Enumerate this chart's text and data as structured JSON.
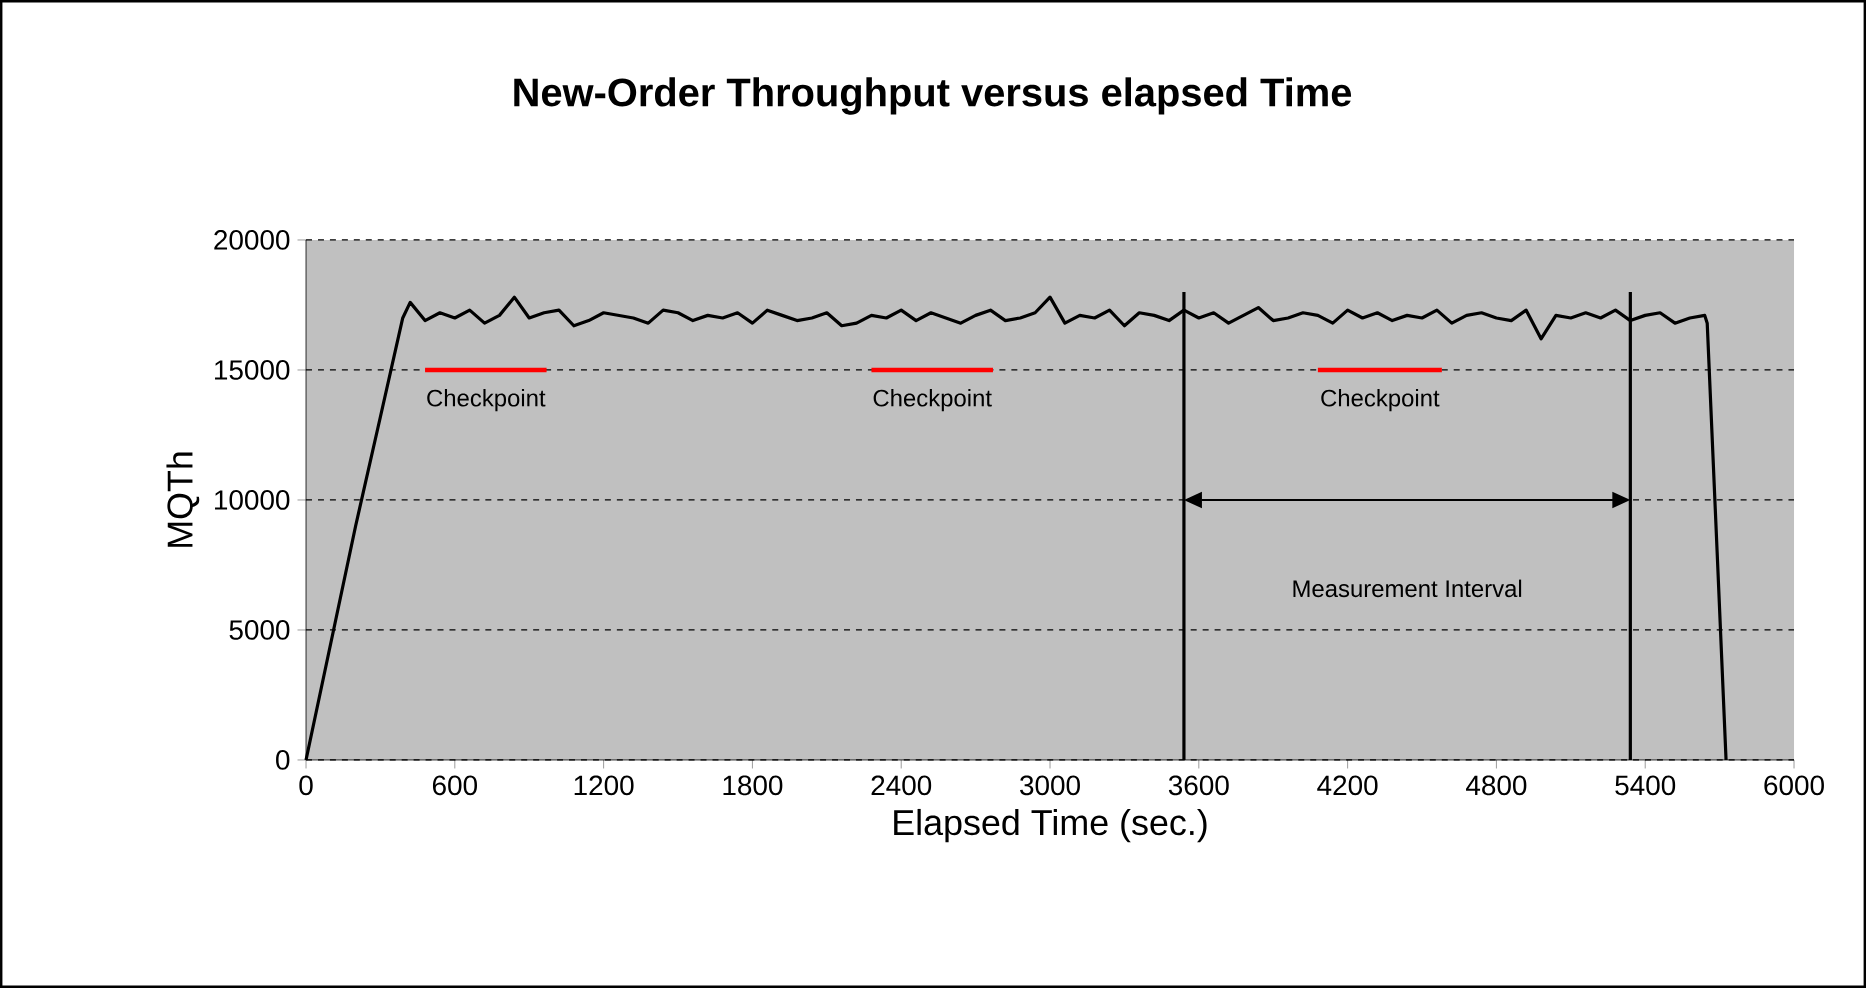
{
  "chart_data": {
    "type": "line",
    "title": "New-Order Throughput versus elapsed Time",
    "xlabel": "Elapsed Time (sec.)",
    "ylabel": "MQTh",
    "xlim": [
      0,
      6000
    ],
    "ylim": [
      0,
      20000
    ],
    "xticks": [
      0,
      600,
      1200,
      1800,
      2400,
      3000,
      3600,
      4200,
      4800,
      5400,
      6000
    ],
    "yticks": [
      0,
      5000,
      10000,
      15000,
      20000
    ],
    "grid": "y",
    "series": [
      {
        "color": "#000000",
        "x": [
          0,
          100,
          200,
          300,
          390,
          420,
          480,
          540,
          600,
          660,
          720,
          780,
          840,
          900,
          960,
          1020,
          1080,
          1140,
          1200,
          1260,
          1320,
          1380,
          1440,
          1500,
          1560,
          1620,
          1680,
          1740,
          1800,
          1860,
          1920,
          1980,
          2040,
          2100,
          2160,
          2220,
          2280,
          2340,
          2400,
          2460,
          2520,
          2580,
          2640,
          2700,
          2760,
          2820,
          2880,
          2940,
          3000,
          3060,
          3120,
          3180,
          3240,
          3300,
          3360,
          3420,
          3480,
          3540,
          3600,
          3660,
          3720,
          3780,
          3840,
          3900,
          3960,
          4020,
          4080,
          4140,
          4200,
          4260,
          4320,
          4380,
          4440,
          4500,
          4560,
          4620,
          4680,
          4740,
          4800,
          4860,
          4920,
          4980,
          5040,
          5100,
          5160,
          5220,
          5280,
          5340,
          5400,
          5460,
          5520,
          5580,
          5640,
          5650,
          5690,
          5726
        ],
        "values": [
          0,
          4500,
          9000,
          13200,
          17000,
          17600,
          16900,
          17200,
          17000,
          17300,
          16800,
          17100,
          17800,
          17000,
          17200,
          17300,
          16700,
          16900,
          17200,
          17100,
          17000,
          16800,
          17300,
          17200,
          16900,
          17100,
          17000,
          17200,
          16800,
          17300,
          17100,
          16900,
          17000,
          17200,
          16700,
          16800,
          17100,
          17000,
          17300,
          16900,
          17200,
          17000,
          16800,
          17100,
          17300,
          16900,
          17000,
          17200,
          17800,
          16800,
          17100,
          17000,
          17300,
          16700,
          17200,
          17100,
          16900,
          17300,
          17000,
          17200,
          16800,
          17100,
          17400,
          16900,
          17000,
          17200,
          17100,
          16800,
          17300,
          17000,
          17200,
          16900,
          17100,
          17000,
          17300,
          16800,
          17100,
          17200,
          17000,
          16900,
          17300,
          16200,
          17100,
          17000,
          17200,
          17000,
          17300,
          16900,
          17100,
          17200,
          16800,
          17000,
          17100,
          16800,
          8000,
          0
        ]
      },
      {
        "color": "#ff0000",
        "x": [
          480,
          970
        ],
        "values": [
          15000,
          15000
        ]
      },
      {
        "color": "#ff0000",
        "x": [
          2280,
          2770
        ],
        "values": [
          15000,
          15000
        ]
      },
      {
        "color": "#ff0000",
        "x": [
          4080,
          4580
        ],
        "values": [
          15000,
          15000
        ]
      }
    ],
    "ref_lines": [
      {
        "axis": "x",
        "value": 3540,
        "color": "#000000"
      },
      {
        "axis": "x",
        "value": 5340,
        "color": "#000000"
      }
    ],
    "annotations": [
      {
        "text": "Checkpoint",
        "x": 725,
        "y": 15000
      },
      {
        "text": "Checkpoint",
        "x": 2525,
        "y": 15000
      },
      {
        "text": "Checkpoint",
        "x": 4330,
        "y": 15000
      },
      "Measurement Interval"
    ]
  }
}
